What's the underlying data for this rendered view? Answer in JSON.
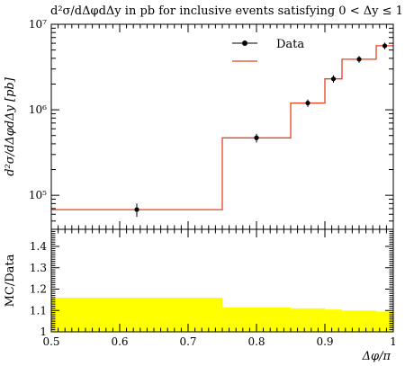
{
  "chart_data": [
    {
      "type": "line",
      "title": "d²σ/dΔφdΔy in pb for inclusive events satisfying 0 < Δy ≤ 1",
      "ylabel": "d²σ/dΔφdΔy [pb]",
      "yscale": "log",
      "ylim": [
        40000,
        10000000
      ],
      "xlim": [
        0.5,
        1.0
      ],
      "ytick_labels": [
        "10⁵",
        "10⁶",
        "10⁷"
      ],
      "legend_position": "top-right",
      "series": [
        {
          "name": "Data",
          "style": "points-with-errorbars",
          "color": "#000000",
          "x": [
            0.625,
            0.8,
            0.875,
            0.9125,
            0.95,
            0.9875
          ],
          "y": [
            68000,
            470000,
            1200000,
            2300000,
            3900000,
            5600000
          ],
          "err_low": [
            12000,
            55000,
            120000,
            230000,
            350000,
            500000
          ],
          "err_high": [
            12000,
            55000,
            120000,
            230000,
            350000,
            500000
          ]
        },
        {
          "name": "",
          "style": "histogram",
          "color": "#e8411f",
          "bin_edges": [
            0.5,
            0.75,
            0.85,
            0.9,
            0.925,
            0.975,
            1.0
          ],
          "values": [
            68000,
            470000,
            1200000,
            2300000,
            3900000,
            5600000
          ]
        }
      ]
    },
    {
      "type": "area",
      "ylabel": "MC/Data",
      "xlabel": "Δφ/π",
      "ylim": [
        1.0,
        1.48
      ],
      "xlim": [
        0.5,
        1.0
      ],
      "yticks": [
        1,
        1.1,
        1.2,
        1.3,
        1.4
      ],
      "ytick_labels": [
        "1",
        "1.1",
        "1.2",
        "1.3",
        "1.4"
      ],
      "xticks": [
        0.5,
        0.6,
        0.7,
        0.8,
        0.9,
        1.0
      ],
      "xtick_labels": [
        "0.5",
        "0.6",
        "0.7",
        "0.8",
        "0.9",
        "1"
      ],
      "band": {
        "color": "#ffff00",
        "bin_edges": [
          0.5,
          0.75,
          0.85,
          0.9,
          0.925,
          0.975,
          1.0
        ],
        "upper": [
          1.16,
          1.115,
          1.11,
          1.105,
          1.1,
          1.095
        ],
        "lower": [
          1.0,
          1.0,
          1.0,
          1.0,
          1.0,
          1.0
        ]
      }
    }
  ],
  "labels": {
    "title": "d²σ/dΔφdΔy in pb for inclusive events satisfying 0 < Δy ≤ 1",
    "ylabel_top": "d²σ/dΔφdΔy [pb]",
    "ylabel_bottom": "MC/Data",
    "xlabel": "Δφ/π",
    "legend_data": "Data"
  }
}
